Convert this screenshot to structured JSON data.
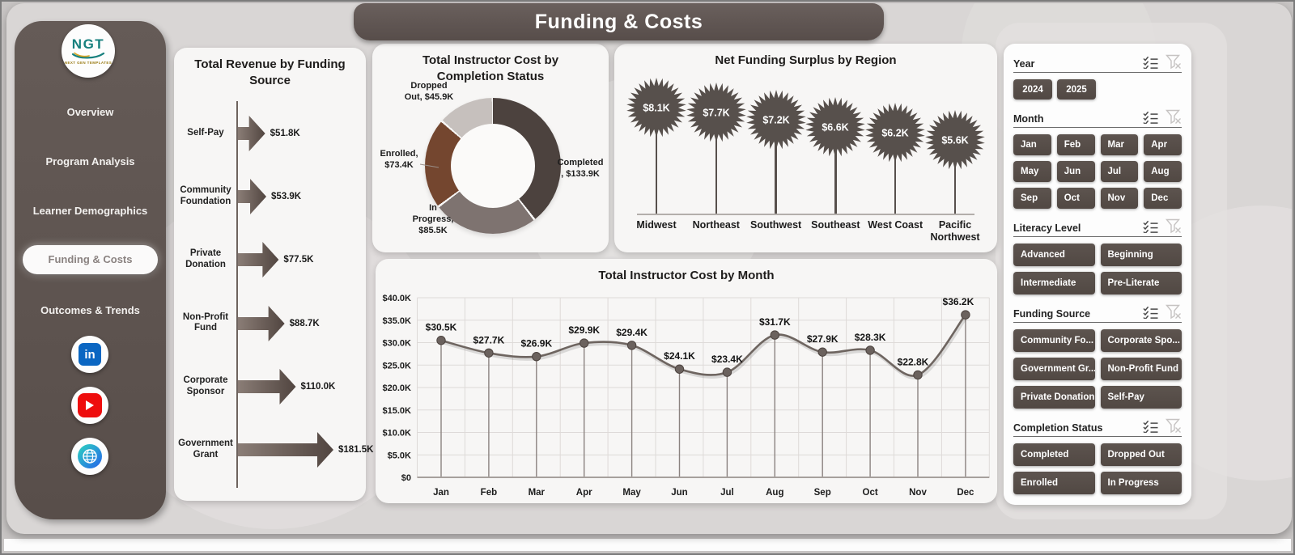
{
  "header": {
    "title": "Funding & Costs"
  },
  "sidebar": {
    "logo": {
      "text": "NGT",
      "caption": "NEXT GEN TEMPLATES"
    },
    "items": [
      {
        "label": "Overview",
        "active": false
      },
      {
        "label": "Program Analysis",
        "active": false
      },
      {
        "label": "Learner Demographics",
        "active": false
      },
      {
        "label": "Funding & Costs",
        "active": true
      },
      {
        "label": "Outcomes & Trends",
        "active": false
      }
    ],
    "social": {
      "linkedin_label": "in"
    }
  },
  "chart_data": [
    {
      "type": "bar",
      "title": "Total Revenue by Funding Source",
      "categories": [
        "Self-Pay",
        "Community Foundation",
        "Private Donation",
        "Non-Profit Fund",
        "Corporate Sponsor",
        "Government Grant"
      ],
      "values": [
        51.8,
        53.9,
        77.5,
        88.7,
        110.0,
        181.5
      ],
      "labels": [
        "$51.8K",
        "$53.9K",
        "$77.5K",
        "$88.7K",
        "$110.0K",
        "$181.5K"
      ],
      "unit": "K USD"
    },
    {
      "type": "pie",
      "title": "Total Instructor Cost by Completion Status",
      "categories": [
        "Completed",
        "In Progress",
        "Enrolled",
        "Dropped Out"
      ],
      "values": [
        133.9,
        85.5,
        73.4,
        45.9
      ],
      "labels": [
        [
          "Completed",
          ", $133.9K"
        ],
        [
          "In",
          "Progress,",
          "$85.5K"
        ],
        [
          "Enrolled,",
          "$73.4K"
        ],
        [
          "Dropped",
          "Out, $45.9K"
        ]
      ],
      "colors": [
        "#4c423e",
        "#7e7370",
        "#74462f",
        "#c6c0bd"
      ]
    },
    {
      "type": "lollipop",
      "title": "Net Funding Surplus by Region",
      "categories": [
        "Midwest",
        "Northeast",
        "Southwest",
        "Southeast",
        "West Coast",
        "Pacific Northwest"
      ],
      "values": [
        8.1,
        7.7,
        7.2,
        6.6,
        6.2,
        5.6
      ],
      "labels": [
        "$8.1K",
        "$7.7K",
        "$7.2K",
        "$6.6K",
        "$6.2K",
        "$5.6K"
      ]
    },
    {
      "type": "line",
      "title": "Total Instructor Cost by Month",
      "x": [
        "Jan",
        "Feb",
        "Mar",
        "Apr",
        "May",
        "Jun",
        "Jul",
        "Aug",
        "Sep",
        "Oct",
        "Nov",
        "Dec"
      ],
      "values": [
        30.5,
        27.7,
        26.9,
        29.9,
        29.4,
        24.1,
        23.4,
        31.7,
        27.9,
        28.3,
        22.8,
        36.2
      ],
      "labels": [
        "$30.5K",
        "$27.7K",
        "$26.9K",
        "$29.9K",
        "$29.4K",
        "$24.1K",
        "$23.4K",
        "$31.7K",
        "$27.9K",
        "$28.3K",
        "$22.8K",
        "$36.2K"
      ],
      "ylim": [
        0,
        40
      ],
      "yticks": [
        "$40.0K",
        "$35.0K",
        "$30.0K",
        "$25.0K",
        "$20.0K",
        "$15.0K",
        "$10.0K",
        "$5.0K",
        "$0"
      ],
      "grid": true
    }
  ],
  "filters": {
    "sections": [
      {
        "title": "Year",
        "layout": "year",
        "buttons": [
          "2024",
          "2025"
        ]
      },
      {
        "title": "Month",
        "layout": "grid4",
        "buttons": [
          "Jan",
          "Feb",
          "Mar",
          "Apr",
          "May",
          "Jun",
          "Jul",
          "Aug",
          "Sep",
          "Oct",
          "Nov",
          "Dec"
        ]
      },
      {
        "title": "Literacy Level",
        "layout": "grid2",
        "buttons": [
          "Advanced",
          "Beginning",
          "Intermediate",
          "Pre-Literate"
        ]
      },
      {
        "title": "Funding Source",
        "layout": "grid2",
        "buttons": [
          "Community Fo...",
          "Corporate Spo...",
          "Government Gr...",
          "Non-Profit Fund",
          "Private Donation",
          "Self-Pay"
        ]
      },
      {
        "title": "Completion Status",
        "layout": "grid2",
        "buttons": [
          "Completed",
          "Dropped Out",
          "Enrolled",
          "In Progress"
        ]
      }
    ]
  }
}
